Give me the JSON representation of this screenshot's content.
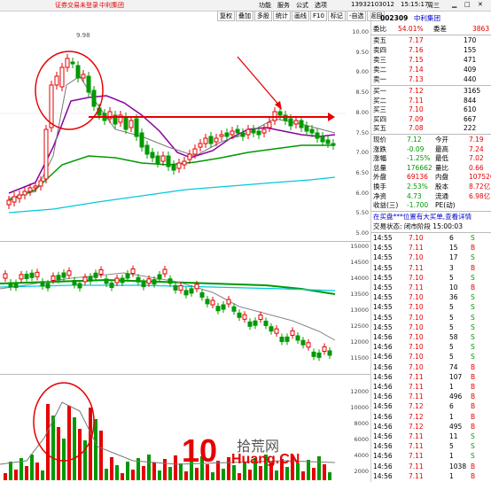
{
  "topbar": {
    "notice": "证券交易未登录",
    "stock_title": "中利集团",
    "menu": [
      "功能",
      "服务",
      "公式",
      "选项"
    ],
    "phone": "13932103012",
    "time": "15:15:17",
    "weekday": "周三"
  },
  "toolbar": {
    "buttons": [
      "复权",
      "叠加",
      "多股",
      "统计",
      "画线",
      "F10",
      "标记",
      "-自选",
      "返回"
    ]
  },
  "kline": {
    "peak_label": "9.98",
    "yticks": [
      "10.00",
      "9.50",
      "9.00",
      "8.50",
      "8.00",
      "7.50",
      "7.00",
      "6.50",
      "6.00",
      "5.50",
      "5.00"
    ]
  },
  "index_chart": {
    "yticks": [
      "15000",
      "14500",
      "14000",
      "13500",
      "13000",
      "12500",
      "12000",
      "11500"
    ]
  },
  "volume_chart": {
    "yticks": [
      "12000",
      "10000",
      "8000",
      "6000",
      "4000",
      "2000"
    ]
  },
  "panel": {
    "code": "002309",
    "name": "中利集团",
    "weibi_label": "委比",
    "weibi_value": "54.01%",
    "weicha_label": "委差",
    "weicha_value": "3863",
    "asks": [
      {
        "label": "卖五",
        "price": "7.17",
        "vol": "170"
      },
      {
        "label": "卖四",
        "price": "7.16",
        "vol": "155"
      },
      {
        "label": "卖三",
        "price": "7.15",
        "vol": "471"
      },
      {
        "label": "卖二",
        "price": "7.14",
        "vol": "409"
      },
      {
        "label": "卖一",
        "price": "7.13",
        "vol": "440"
      }
    ],
    "bids": [
      {
        "label": "买一",
        "price": "7.12",
        "vol": "3165"
      },
      {
        "label": "买二",
        "price": "7.11",
        "vol": "844"
      },
      {
        "label": "买三",
        "price": "7.10",
        "vol": "610"
      },
      {
        "label": "买四",
        "price": "7.09",
        "vol": "667"
      },
      {
        "label": "买五",
        "price": "7.08",
        "vol": "222"
      }
    ],
    "stats": [
      {
        "l1": "现价",
        "v1": "7.12",
        "l2": "今开",
        "v2": "7.19"
      },
      {
        "l1": "涨跌",
        "v1": "-0.09",
        "l2": "最高",
        "v2": "7.24"
      },
      {
        "l1": "涨幅",
        "v1": "-1.25%",
        "l2": "最低",
        "v2": "7.02"
      },
      {
        "l1": "总量",
        "v1": "176662",
        "l2": "量比",
        "v2": "0.66"
      },
      {
        "l1": "外盘",
        "v1": "69136",
        "l2": "内盘",
        "v2": "107526"
      },
      {
        "l1": "换手",
        "v1": "2.53%",
        "l2": "股本",
        "v2": "8.72亿"
      },
      {
        "l1": "净资",
        "v1": "4.73",
        "l2": "流通",
        "v2": "6.98亿"
      },
      {
        "l1": "收益(三)",
        "v1": "-1.700",
        "l2": "PE(动)",
        "v2": ""
      }
    ],
    "notice": "在买盘***位置有大买单,查看详情",
    "trade_status": "交易状态: 闭市阶段 15:00:03",
    "ticks": [
      {
        "t": "14:55",
        "p": "7.10",
        "v": "6",
        "s": "S"
      },
      {
        "t": "14:55",
        "p": "7.11",
        "v": "15",
        "s": "B"
      },
      {
        "t": "14:55",
        "p": "7.10",
        "v": "17",
        "s": "S"
      },
      {
        "t": "14:55",
        "p": "7.11",
        "v": "3",
        "s": "B"
      },
      {
        "t": "14:55",
        "p": "7.10",
        "v": "5",
        "s": "S"
      },
      {
        "t": "14:55",
        "p": "7.11",
        "v": "10",
        "s": "B"
      },
      {
        "t": "14:55",
        "p": "7.10",
        "v": "36",
        "s": "S"
      },
      {
        "t": "14:55",
        "p": "7.10",
        "v": "5",
        "s": "S"
      },
      {
        "t": "14:55",
        "p": "7.10",
        "v": "5",
        "s": "S"
      },
      {
        "t": "14:55",
        "p": "7.10",
        "v": "5",
        "s": "S"
      },
      {
        "t": "14:56",
        "p": "7.10",
        "v": "58",
        "s": "S"
      },
      {
        "t": "14:56",
        "p": "7.10",
        "v": "5",
        "s": "S"
      },
      {
        "t": "14:56",
        "p": "7.10",
        "v": "5",
        "s": "S"
      },
      {
        "t": "14:56",
        "p": "7.10",
        "v": "74",
        "s": "B"
      },
      {
        "t": "14:56",
        "p": "7.11",
        "v": "107",
        "s": "B"
      },
      {
        "t": "14:56",
        "p": "7.11",
        "v": "1",
        "s": "B"
      },
      {
        "t": "14:56",
        "p": "7.11",
        "v": "496",
        "s": "B"
      },
      {
        "t": "14:56",
        "p": "7.12",
        "v": "6",
        "s": "B"
      },
      {
        "t": "14:56",
        "p": "7.12",
        "v": "1",
        "s": "B"
      },
      {
        "t": "14:56",
        "p": "7.12",
        "v": "495",
        "s": "B"
      },
      {
        "t": "14:56",
        "p": "7.11",
        "v": "11",
        "s": "S"
      },
      {
        "t": "14:56",
        "p": "7.11",
        "v": "5",
        "s": "S"
      },
      {
        "t": "14:56",
        "p": "7.11",
        "v": "1",
        "s": "S"
      },
      {
        "t": "14:56",
        "p": "7.11",
        "v": "1038",
        "s": "B"
      },
      {
        "t": "14:56",
        "p": "7.11",
        "v": "1",
        "s": "B"
      }
    ]
  },
  "watermark": {
    "top": "拾荒网",
    "bottom": "Huang.CN",
    "prefix": "10"
  },
  "colors": {
    "up": "#e60000",
    "down": "#009900",
    "ma_purple": "#8a00a0",
    "ma_cyan": "#00c8e0"
  }
}
